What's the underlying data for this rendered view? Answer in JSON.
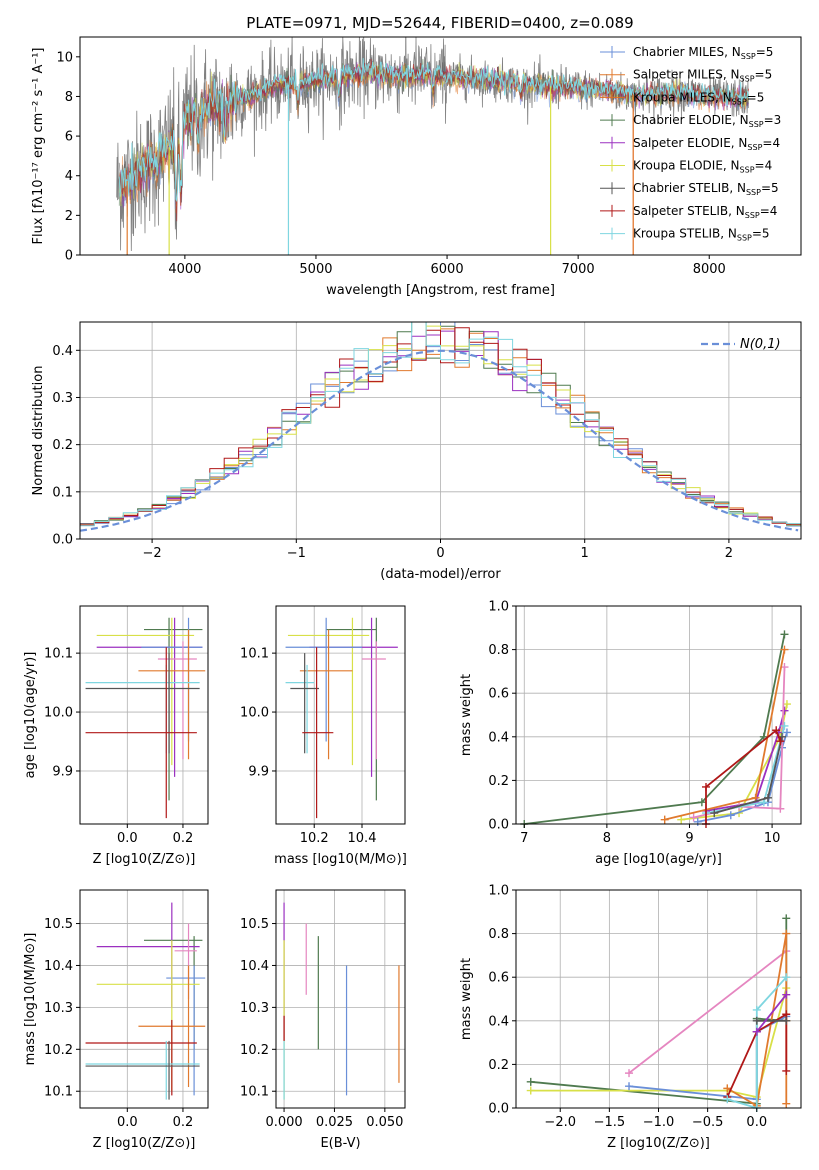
{
  "figure": {
    "title": "PLATE=0971, MJD=52644, FIBERID=0400, z=0.089"
  },
  "colors": {
    "Chabrier MILES": "#6a8fd8",
    "Salpeter MILES": "#e07a2e",
    "Kroupa MILES": "#e06c1e",
    "Chabrier ELODIE": "#4f7a4f",
    "Salpeter ELODIE": "#9b30c0",
    "Kroupa ELODIE": "#d8e048",
    "Chabrier STELIB": "#555555",
    "Salpeter STELIB": "#b01818",
    "Kroupa STELIB": "#7fd6e0",
    "data": "#808080",
    "normal": "#6a8fd8",
    "extra_pink": "#e586c0"
  },
  "legend_entries": [
    {
      "label": "Chabrier MILES, N",
      "sub": "SSP",
      "tail": "=5",
      "key": "Chabrier MILES"
    },
    {
      "label": "Salpeter MILES, N",
      "sub": "SSP",
      "tail": "=5",
      "key": "Salpeter MILES"
    },
    {
      "label": "Kroupa MILES, N",
      "sub": "SSP",
      "tail": "=5",
      "key": "Kroupa MILES"
    },
    {
      "label": "Chabrier ELODIE, N",
      "sub": "SSP",
      "tail": "=3",
      "key": "Chabrier ELODIE"
    },
    {
      "label": "Salpeter ELODIE, N",
      "sub": "SSP",
      "tail": "=4",
      "key": "Salpeter ELODIE"
    },
    {
      "label": "Kroupa ELODIE, N",
      "sub": "SSP",
      "tail": "=4",
      "key": "Kroupa ELODIE"
    },
    {
      "label": "Chabrier STELIB, N",
      "sub": "SSP",
      "tail": "=5",
      "key": "Chabrier STELIB"
    },
    {
      "label": "Salpeter STELIB, N",
      "sub": "SSP",
      "tail": "=4",
      "key": "Salpeter STELIB"
    },
    {
      "label": "Kroupa STELIB, N",
      "sub": "SSP",
      "tail": "=5",
      "key": "Kroupa STELIB"
    }
  ],
  "chart_data": [
    {
      "id": "spectrum",
      "type": "line",
      "xlabel": "wavelength [Angstrom, rest frame]",
      "ylabel": "Flux [fλ10⁻¹⁷ erg cm⁻² s⁻¹ A⁻¹]",
      "xlim": [
        3200,
        8700
      ],
      "ylim": [
        0,
        11
      ],
      "xticks": [
        4000,
        5000,
        6000,
        7000,
        8000
      ],
      "yticks": [
        0,
        2,
        4,
        6,
        8,
        10
      ],
      "legend": "right",
      "continuum": {
        "x": [
          3480,
          3600,
          3700,
          3800,
          3900,
          4000,
          4100,
          4200,
          4300,
          4400,
          4500,
          4600,
          4700,
          4800,
          4900,
          5000,
          5200,
          5400,
          5600,
          5800,
          6000,
          6200,
          6400,
          6600,
          6800,
          7000,
          7200,
          7400,
          7600,
          7800,
          8000,
          8200,
          8300
        ],
        "y": [
          3.4,
          3.9,
          4.3,
          4.8,
          5.6,
          6.7,
          7.3,
          7.4,
          7.6,
          7.9,
          8.0,
          8.3,
          8.5,
          8.6,
          8.7,
          8.8,
          9.0,
          9.2,
          9.0,
          9.1,
          9.0,
          8.9,
          8.8,
          8.6,
          8.5,
          8.4,
          8.3,
          8.1,
          8.1,
          8.2,
          8.0,
          7.9,
          7.9
        ]
      },
      "dips": [
        {
          "x": 3934,
          "depth": 3.5
        },
        {
          "x": 3969,
          "depth": 3.0
        },
        {
          "x": 4101,
          "depth": 1.5
        },
        {
          "x": 4304,
          "depth": 1.2
        },
        {
          "x": 4862,
          "depth": 1.0
        },
        {
          "x": 5175,
          "depth": 0.9
        },
        {
          "x": 5893,
          "depth": 0.7
        },
        {
          "x": 6563,
          "depth": 0.6
        }
      ],
      "spikes": [
        {
          "x": 3560,
          "y": 0,
          "color": "Salpeter MILES"
        },
        {
          "x": 3880,
          "y": 0,
          "color": "Kroupa ELODIE"
        },
        {
          "x": 4790,
          "y": 0,
          "color": "Kroupa STELIB"
        },
        {
          "x": 6790,
          "y": 0,
          "color": "Kroupa ELODIE"
        },
        {
          "x": 7420,
          "y": 0,
          "color": "Kroupa MILES"
        }
      ]
    },
    {
      "id": "residuals",
      "type": "histogram",
      "xlabel": "(data-model)/error",
      "ylabel": "Normed distribution",
      "xlim": [
        -2.5,
        2.5
      ],
      "ylim": [
        0,
        0.46
      ],
      "xticks": [
        -2,
        -1,
        0,
        1,
        2
      ],
      "yticks": [
        0.0,
        0.1,
        0.2,
        0.3,
        0.4
      ],
      "grid": true,
      "legend": "top-right",
      "bin_width": 0.1,
      "normal_label": "N(0,1)"
    },
    {
      "id": "age_vs_Z",
      "type": "errorbar",
      "xlabel": "Z [log10(Z/Z⊙)]",
      "ylabel": "age  [log10(age/yr)]",
      "xlim": [
        -0.17,
        0.29
      ],
      "ylim": [
        9.81,
        10.18
      ],
      "xticks": [
        0.0,
        0.2
      ],
      "yticks": [
        9.9,
        10.0,
        10.1
      ],
      "grid": true,
      "points": [
        {
          "x": 0.15,
          "y": 10.14,
          "xerr": [
            0.0,
            0.0
          ],
          "yerr": [
            0.0,
            0.0
          ],
          "xlo": 0.06,
          "xhi": 0.27,
          "ylo": 9.85,
          "yhi": 10.16,
          "c": "Chabrier ELODIE"
        },
        {
          "x": 0.16,
          "y": 10.13,
          "xlo": -0.11,
          "xhi": 0.24,
          "ylo": 9.91,
          "yhi": 10.16,
          "c": "Kroupa ELODIE"
        },
        {
          "x": 0.17,
          "y": 10.11,
          "xlo": -0.11,
          "xhi": 0.27,
          "ylo": 9.89,
          "yhi": 10.16,
          "c": "Salpeter ELODIE"
        },
        {
          "x": 0.22,
          "y": 10.11,
          "xlo": 0.05,
          "xhi": 0.27,
          "ylo": 9.95,
          "yhi": 10.16,
          "c": "Chabrier MILES"
        },
        {
          "x": 0.2,
          "y": 10.09,
          "xlo": 0.11,
          "xhi": 0.25,
          "ylo": 9.92,
          "yhi": 10.12,
          "c": "extra_pink"
        },
        {
          "x": 0.22,
          "y": 10.07,
          "xlo": 0.04,
          "xhi": 0.28,
          "ylo": 9.92,
          "yhi": 10.14,
          "c": "Salpeter MILES"
        },
        {
          "x": 0.14,
          "y": 10.05,
          "xlo": -0.15,
          "xhi": 0.26,
          "ylo": 9.93,
          "yhi": 10.08,
          "c": "Kroupa STELIB"
        },
        {
          "x": 0.15,
          "y": 10.04,
          "xlo": -0.15,
          "xhi": 0.26,
          "ylo": 9.93,
          "yhi": 10.1,
          "c": "Chabrier STELIB"
        },
        {
          "x": 0.14,
          "y": 9.965,
          "xlo": -0.15,
          "xhi": 0.25,
          "ylo": 9.82,
          "yhi": 10.11,
          "c": "Salpeter STELIB"
        }
      ]
    },
    {
      "id": "age_vs_mass",
      "type": "errorbar",
      "xlabel": "mass [log10(M/M⊙)]",
      "ylabel": "",
      "xlim": [
        10.04,
        10.58
      ],
      "ylim": [
        9.81,
        10.18
      ],
      "xticks": [
        10.2,
        10.4
      ],
      "yticks": [
        9.9,
        10.0,
        10.1
      ],
      "grid": true,
      "points": [
        {
          "x": 10.46,
          "y": 10.14,
          "xlo": 10.25,
          "xhi": 10.46,
          "ylo": 9.85,
          "yhi": 10.16,
          "c": "Chabrier ELODIE"
        },
        {
          "x": 10.36,
          "y": 10.13,
          "xlo": 10.09,
          "xhi": 10.43,
          "ylo": 9.91,
          "yhi": 10.16,
          "c": "Kroupa ELODIE"
        },
        {
          "x": 10.44,
          "y": 10.11,
          "xlo": 10.18,
          "xhi": 10.55,
          "ylo": 9.89,
          "yhi": 10.16,
          "c": "Salpeter ELODIE"
        },
        {
          "x": 10.25,
          "y": 10.11,
          "xlo": 10.08,
          "xhi": 10.4,
          "ylo": 9.95,
          "yhi": 10.16,
          "c": "Chabrier MILES"
        },
        {
          "x": 10.46,
          "y": 10.09,
          "xlo": 10.4,
          "xhi": 10.5,
          "ylo": 9.92,
          "yhi": 10.12,
          "c": "extra_pink"
        },
        {
          "x": 10.26,
          "y": 10.07,
          "xlo": 10.14,
          "xhi": 10.36,
          "ylo": 9.92,
          "yhi": 10.14,
          "c": "Salpeter MILES"
        },
        {
          "x": 10.17,
          "y": 10.05,
          "xlo": 10.08,
          "xhi": 10.2,
          "ylo": 9.93,
          "yhi": 10.08,
          "c": "Kroupa STELIB"
        },
        {
          "x": 10.16,
          "y": 10.04,
          "xlo": 10.1,
          "xhi": 10.22,
          "ylo": 9.93,
          "yhi": 10.1,
          "c": "Chabrier STELIB"
        },
        {
          "x": 10.21,
          "y": 9.965,
          "xlo": 10.15,
          "xhi": 10.28,
          "ylo": 9.82,
          "yhi": 10.11,
          "c": "Salpeter STELIB"
        }
      ]
    },
    {
      "id": "weight_vs_age",
      "type": "line",
      "xlabel": "age  [log10(age/yr)]",
      "ylabel": "mass weight",
      "xlim": [
        6.9,
        10.35
      ],
      "ylim": [
        0,
        1
      ],
      "xticks": [
        7,
        8,
        9,
        10
      ],
      "yticks": [
        0.0,
        0.2,
        0.4,
        0.6,
        0.8,
        1.0
      ],
      "grid": true,
      "series": [
        {
          "c": "Chabrier ELODIE",
          "x": [
            7.0,
            9.15,
            9.9,
            10.15
          ],
          "y": [
            0.0,
            0.1,
            0.4,
            0.87
          ]
        },
        {
          "c": "Kroupa ELODIE",
          "x": [
            8.9,
            9.6,
            10.1,
            10.18
          ],
          "y": [
            0.02,
            0.05,
            0.4,
            0.55
          ]
        },
        {
          "c": "Salpeter ELODIE",
          "x": [
            9.2,
            9.8,
            10.08,
            10.15
          ],
          "y": [
            0.06,
            0.1,
            0.42,
            0.52
          ]
        },
        {
          "c": "Chabrier MILES",
          "x": [
            9.1,
            9.5,
            9.95,
            10.12,
            10.18
          ],
          "y": [
            0.01,
            0.04,
            0.1,
            0.35,
            0.42
          ]
        },
        {
          "c": "extra_pink",
          "x": [
            9.05,
            9.6,
            10.1,
            10.15
          ],
          "y": [
            0.03,
            0.08,
            0.07,
            0.72
          ]
        },
        {
          "c": "Salpeter MILES",
          "x": [
            8.7,
            9.8,
            10.15
          ],
          "y": [
            0.02,
            0.12,
            0.8
          ]
        },
        {
          "c": "Kroupa STELIB",
          "x": [
            9.2,
            9.9,
            10.15
          ],
          "y": [
            0.05,
            0.1,
            0.45
          ]
        },
        {
          "c": "Chabrier STELIB",
          "x": [
            9.3,
            9.95,
            10.12
          ],
          "y": [
            0.05,
            0.12,
            0.4
          ]
        },
        {
          "c": "Salpeter STELIB",
          "x": [
            9.2,
            9.2,
            10.05,
            10.1
          ],
          "y": [
            0.0,
            0.17,
            0.43,
            0.38
          ]
        }
      ]
    },
    {
      "id": "mass_vs_Z",
      "type": "errorbar",
      "xlabel": "Z [log10(Z/Z⊙)]",
      "ylabel": "mass [log10(M/M⊙)]",
      "xlim": [
        -0.17,
        0.29
      ],
      "ylim": [
        10.06,
        10.58
      ],
      "xticks": [
        0.0,
        0.2
      ],
      "yticks": [
        10.1,
        10.2,
        10.3,
        10.4,
        10.5
      ],
      "grid": true,
      "points": [
        {
          "x": 0.24,
          "y": 10.46,
          "xlo": 0.06,
          "xhi": 0.27,
          "ylo": 10.2,
          "yhi": 10.47,
          "c": "Chabrier ELODIE"
        },
        {
          "x": 0.16,
          "y": 10.445,
          "xlo": -0.11,
          "xhi": 0.26,
          "ylo": 10.3,
          "yhi": 10.55,
          "c": "Salpeter ELODIE"
        },
        {
          "x": 0.22,
          "y": 10.435,
          "xlo": 0.17,
          "xhi": 0.25,
          "ylo": 10.32,
          "yhi": 10.5,
          "c": "extra_pink"
        },
        {
          "x": 0.24,
          "y": 10.37,
          "xlo": 0.14,
          "xhi": 0.28,
          "ylo": 10.09,
          "yhi": 10.4,
          "c": "Chabrier MILES"
        },
        {
          "x": 0.16,
          "y": 10.355,
          "xlo": -0.11,
          "xhi": 0.26,
          "ylo": 10.1,
          "yhi": 10.46,
          "c": "Kroupa ELODIE"
        },
        {
          "x": 0.22,
          "y": 10.255,
          "xlo": 0.04,
          "xhi": 0.28,
          "ylo": 10.11,
          "yhi": 10.4,
          "c": "Salpeter MILES"
        },
        {
          "x": 0.16,
          "y": 10.215,
          "xlo": -0.15,
          "xhi": 0.25,
          "ylo": 10.09,
          "yhi": 10.27,
          "c": "Salpeter STELIB"
        },
        {
          "x": 0.14,
          "y": 10.165,
          "xlo": -0.15,
          "xhi": 0.26,
          "ylo": 10.08,
          "yhi": 10.22,
          "c": "Kroupa STELIB"
        },
        {
          "x": 0.15,
          "y": 10.16,
          "xlo": -0.15,
          "xhi": 0.26,
          "ylo": 10.08,
          "yhi": 10.22,
          "c": "Chabrier STELIB"
        }
      ]
    },
    {
      "id": "mass_vs_EBV",
      "type": "errorbar",
      "xlabel": "E(B-V)",
      "ylabel": "",
      "xlim": [
        -0.004,
        0.06
      ],
      "ylim": [
        10.06,
        10.58
      ],
      "xticks": [
        0.0,
        0.025,
        0.05
      ],
      "yticks": [
        10.1,
        10.2,
        10.3,
        10.4,
        10.5
      ],
      "grid": true,
      "points": [
        {
          "x": 0.0,
          "y": 10.5,
          "ylo": 10.22,
          "yhi": 10.55,
          "c": "Salpeter ELODIE"
        },
        {
          "x": 0.0,
          "y": 10.35,
          "ylo": 10.08,
          "yhi": 10.46,
          "c": "Kroupa ELODIE"
        },
        {
          "x": 0.0,
          "y": 10.16,
          "ylo": 10.08,
          "yhi": 10.22,
          "c": "Kroupa STELIB"
        },
        {
          "x": 0.0,
          "y": 10.25,
          "ylo": 10.22,
          "yhi": 10.28,
          "c": "Salpeter STELIB"
        },
        {
          "x": 0.011,
          "y": 10.41,
          "ylo": 10.33,
          "yhi": 10.5,
          "c": "extra_pink"
        },
        {
          "x": 0.017,
          "y": 10.34,
          "ylo": 10.2,
          "yhi": 10.47,
          "c": "Chabrier ELODIE"
        },
        {
          "x": 0.031,
          "y": 10.24,
          "ylo": 10.09,
          "yhi": 10.4,
          "c": "Chabrier MILES"
        },
        {
          "x": 0.057,
          "y": 10.26,
          "ylo": 10.12,
          "yhi": 10.4,
          "c": "Salpeter MILES"
        }
      ]
    },
    {
      "id": "weight_vs_Z",
      "type": "line",
      "xlabel": "Z [log10(Z/Z⊙)]",
      "ylabel": "mass weight",
      "xlim": [
        -2.45,
        0.45
      ],
      "ylim": [
        0,
        1
      ],
      "xticks": [
        -2.0,
        -1.5,
        -1.0,
        -0.5,
        0.0
      ],
      "yticks": [
        0.0,
        0.2,
        0.4,
        0.6,
        0.8,
        1.0
      ],
      "grid": true,
      "series": [
        {
          "c": "Chabrier ELODIE",
          "x": [
            -2.3,
            0.0,
            0.0,
            0.3,
            0.3
          ],
          "y": [
            0.12,
            0.02,
            0.41,
            0.4,
            0.87
          ]
        },
        {
          "c": "Kroupa ELODIE",
          "x": [
            -2.3,
            -0.3,
            0.0,
            0.3
          ],
          "y": [
            0.08,
            0.08,
            0.05,
            0.55
          ]
        },
        {
          "c": "extra_pink",
          "x": [
            -1.3,
            0.3
          ],
          "y": [
            0.16,
            0.72
          ]
        },
        {
          "c": "Chabrier MILES",
          "x": [
            -1.3,
            0.0,
            0.0,
            0.3
          ],
          "y": [
            0.1,
            0.04,
            0.35,
            0.42
          ]
        },
        {
          "c": "Salpeter MILES",
          "x": [
            -0.3,
            0.0,
            0.3,
            0.3,
            0.3
          ],
          "y": [
            0.09,
            0.01,
            0.8,
            0.02,
            0.4
          ]
        },
        {
          "c": "Salpeter STELIB",
          "x": [
            -0.3,
            0.0,
            0.3,
            0.3
          ],
          "y": [
            0.05,
            0.35,
            0.43,
            0.17
          ]
        },
        {
          "c": "Kroupa STELIB",
          "x": [
            -0.3,
            0.0,
            0.0,
            0.3
          ],
          "y": [
            0.04,
            0.0,
            0.45,
            0.6
          ]
        },
        {
          "c": "Chabrier STELIB",
          "x": [
            0.0,
            0.3
          ],
          "y": [
            0.4,
            0.4
          ]
        },
        {
          "c": "Salpeter ELODIE",
          "x": [
            0.0,
            0.3
          ],
          "y": [
            0.35,
            0.52
          ]
        }
      ]
    }
  ]
}
